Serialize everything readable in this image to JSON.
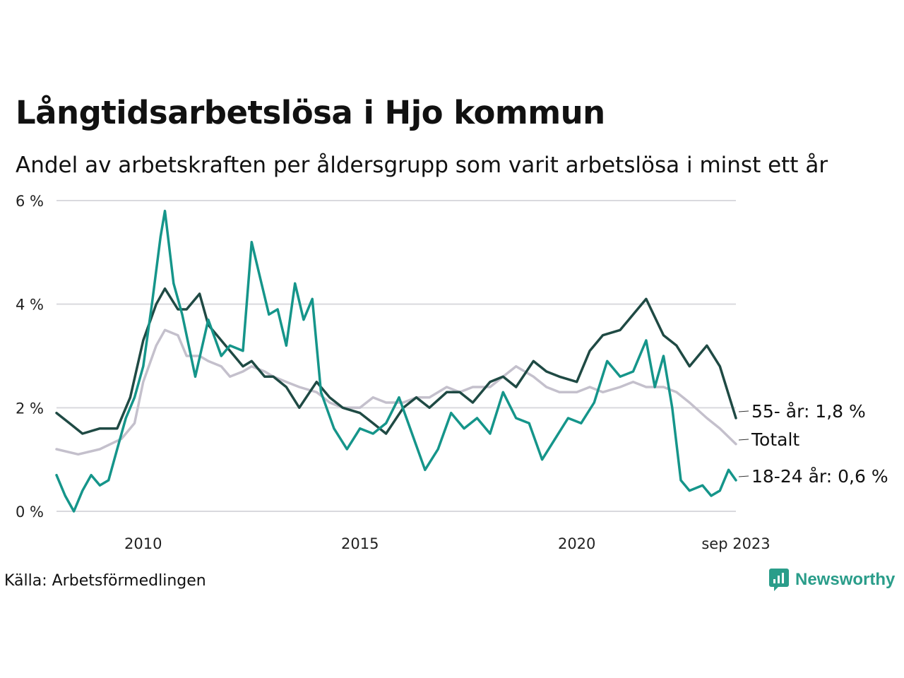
{
  "title": "Långtidsarbetslösa i Hjo kommun",
  "subtitle": "Andel av arbetskraften per åldersgrupp som varit arbetslösa i minst ett år",
  "source": "Källa: Arbetsförmedlingen",
  "brand": "Newsworthy",
  "colors": {
    "background": "#ffffff",
    "grid": "#d9d9de",
    "s55": "#1f4a44",
    "s1824": "#15958a",
    "total": "#c4c0cc",
    "brand": "#2a9d8a"
  },
  "chart_data": {
    "type": "line",
    "title": "Långtidsarbetslösa i Hjo kommun",
    "xlabel": "",
    "ylabel": "",
    "ylim": [
      0,
      6
    ],
    "xlim": [
      2008.0,
      2023.67
    ],
    "yticks": [
      0,
      2,
      4,
      6
    ],
    "ytick_labels": [
      "0 %",
      "2 %",
      "4 %",
      "6 %"
    ],
    "xticks": [
      2010,
      2015,
      2020,
      2023.67
    ],
    "xtick_labels": [
      "2010",
      "2015",
      "2020",
      "sep 2023"
    ],
    "series": [
      {
        "name": "Totalt",
        "label": "Totalt",
        "color": "#c4c0cc",
        "x": [
          2008.0,
          2008.5,
          2009.0,
          2009.5,
          2009.8,
          2010.0,
          2010.3,
          2010.5,
          2010.8,
          2011.0,
          2011.3,
          2011.5,
          2011.8,
          2012.0,
          2012.3,
          2012.5,
          2012.8,
          2013.0,
          2013.3,
          2013.6,
          2014.0,
          2014.3,
          2014.6,
          2015.0,
          2015.3,
          2015.6,
          2016.0,
          2016.3,
          2016.6,
          2017.0,
          2017.3,
          2017.6,
          2018.0,
          2018.3,
          2018.6,
          2019.0,
          2019.3,
          2019.6,
          2020.0,
          2020.3,
          2020.6,
          2021.0,
          2021.3,
          2021.6,
          2022.0,
          2022.3,
          2022.6,
          2023.0,
          2023.3,
          2023.67
        ],
        "values": [
          1.2,
          1.1,
          1.2,
          1.4,
          1.7,
          2.5,
          3.2,
          3.5,
          3.4,
          3.0,
          3.0,
          2.9,
          2.8,
          2.6,
          2.7,
          2.8,
          2.7,
          2.6,
          2.5,
          2.4,
          2.3,
          2.1,
          2.0,
          2.0,
          2.2,
          2.1,
          2.1,
          2.2,
          2.2,
          2.4,
          2.3,
          2.4,
          2.4,
          2.6,
          2.8,
          2.6,
          2.4,
          2.3,
          2.3,
          2.4,
          2.3,
          2.4,
          2.5,
          2.4,
          2.4,
          2.3,
          2.1,
          1.8,
          1.6,
          1.3
        ]
      },
      {
        "name": "55- år",
        "label": "55- år: 1,8 %",
        "color": "#1f4a44",
        "x": [
          2008.0,
          2008.3,
          2008.6,
          2009.0,
          2009.4,
          2009.7,
          2010.0,
          2010.3,
          2010.5,
          2010.8,
          2011.0,
          2011.3,
          2011.5,
          2011.8,
          2012.0,
          2012.3,
          2012.5,
          2012.8,
          2013.0,
          2013.3,
          2013.6,
          2014.0,
          2014.3,
          2014.6,
          2015.0,
          2015.3,
          2015.6,
          2016.0,
          2016.3,
          2016.6,
          2017.0,
          2017.3,
          2017.6,
          2018.0,
          2018.3,
          2018.6,
          2019.0,
          2019.3,
          2019.6,
          2020.0,
          2020.3,
          2020.6,
          2021.0,
          2021.3,
          2021.6,
          2022.0,
          2022.3,
          2022.6,
          2023.0,
          2023.3,
          2023.67
        ],
        "values": [
          1.9,
          1.7,
          1.5,
          1.6,
          1.6,
          2.2,
          3.3,
          4.0,
          4.3,
          3.9,
          3.9,
          4.2,
          3.6,
          3.3,
          3.1,
          2.8,
          2.9,
          2.6,
          2.6,
          2.4,
          2.0,
          2.5,
          2.2,
          2.0,
          1.9,
          1.7,
          1.5,
          2.0,
          2.2,
          2.0,
          2.3,
          2.3,
          2.1,
          2.5,
          2.6,
          2.4,
          2.9,
          2.7,
          2.6,
          2.5,
          3.1,
          3.4,
          3.5,
          3.8,
          4.1,
          3.4,
          3.2,
          2.8,
          3.2,
          2.8,
          1.8
        ]
      },
      {
        "name": "18-24 år",
        "label": "18-24 år: 0,6 %",
        "color": "#15958a",
        "x": [
          2008.0,
          2008.2,
          2008.4,
          2008.6,
          2008.8,
          2009.0,
          2009.2,
          2009.4,
          2009.6,
          2009.8,
          2010.0,
          2010.2,
          2010.4,
          2010.5,
          2010.7,
          2010.9,
          2011.2,
          2011.5,
          2011.8,
          2012.0,
          2012.3,
          2012.5,
          2012.7,
          2012.9,
          2013.1,
          2013.3,
          2013.5,
          2013.7,
          2013.9,
          2014.1,
          2014.4,
          2014.7,
          2015.0,
          2015.3,
          2015.6,
          2015.9,
          2016.2,
          2016.5,
          2016.8,
          2017.1,
          2017.4,
          2017.7,
          2018.0,
          2018.3,
          2018.6,
          2018.9,
          2019.2,
          2019.5,
          2019.8,
          2020.1,
          2020.4,
          2020.7,
          2021.0,
          2021.3,
          2021.6,
          2021.8,
          2022.0,
          2022.2,
          2022.4,
          2022.6,
          2022.9,
          2023.1,
          2023.3,
          2023.5,
          2023.67
        ],
        "values": [
          0.7,
          0.3,
          0.0,
          0.4,
          0.7,
          0.5,
          0.6,
          1.2,
          1.8,
          2.2,
          2.8,
          4.0,
          5.3,
          5.8,
          4.4,
          3.8,
          2.6,
          3.7,
          3.0,
          3.2,
          3.1,
          5.2,
          4.5,
          3.8,
          3.9,
          3.2,
          4.4,
          3.7,
          4.1,
          2.3,
          1.6,
          1.2,
          1.6,
          1.5,
          1.7,
          2.2,
          1.5,
          0.8,
          1.2,
          1.9,
          1.6,
          1.8,
          1.5,
          2.3,
          1.8,
          1.7,
          1.0,
          1.4,
          1.8,
          1.7,
          2.1,
          2.9,
          2.6,
          2.7,
          3.3,
          2.4,
          3.0,
          2.0,
          0.6,
          0.4,
          0.5,
          0.3,
          0.4,
          0.8,
          0.6
        ]
      }
    ]
  }
}
